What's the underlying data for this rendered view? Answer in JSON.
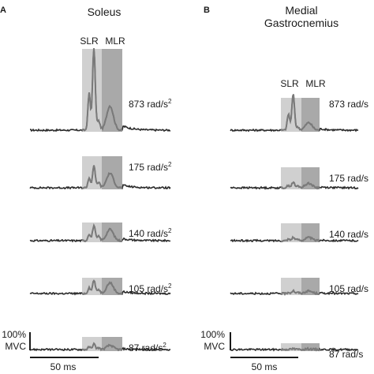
{
  "colors": {
    "slr_window": "#d0d0d0",
    "mlr_window": "#a9a9a9",
    "trace_in_window": "#7a7a7a",
    "trace_baseline": "#2b2b2b"
  },
  "chart_data": [
    {
      "type": "line",
      "panel": "A",
      "title": "Soleus",
      "window_labels": {
        "slr": "SLR",
        "mlr": "MLR"
      },
      "x_units": "ms",
      "y_units": "% MVC",
      "scale_bar": {
        "x_label": "50 ms",
        "y_label": [
          "100%",
          "MVC"
        ]
      },
      "rows": [
        {
          "label": "873 rad/s²",
          "peak_slr": 0.95,
          "peak_mlr": 0.35
        },
        {
          "label": "175 rad/s²",
          "peak_slr": 0.6,
          "peak_mlr": 0.5
        },
        {
          "label": "140 rad/s²",
          "peak_slr": 0.48,
          "peak_mlr": 0.45
        },
        {
          "label": "105 rad/s²",
          "peak_slr": 0.45,
          "peak_mlr": 0.45
        },
        {
          "label": "87 rad/s²",
          "peak_slr": 0.3,
          "peak_mlr": 0.28
        }
      ]
    },
    {
      "type": "line",
      "panel": "B",
      "title": [
        "Medial",
        "Gastrocnemius"
      ],
      "window_labels": {
        "slr": "SLR",
        "mlr": "MLR"
      },
      "x_units": "ms",
      "y_units": "% MVC",
      "scale_bar": {
        "x_label": "50 ms",
        "y_label": [
          "100%",
          "MVC"
        ]
      },
      "rows": [
        {
          "label": "873 rad/s",
          "peak_slr": 0.95,
          "peak_mlr": 0.25
        },
        {
          "label": "175 rad/s",
          "peak_slr": 0.3,
          "peak_mlr": 0.3
        },
        {
          "label": "140 rad/s",
          "peak_slr": 0.22,
          "peak_mlr": 0.25
        },
        {
          "label": "105 rad/s",
          "peak_slr": 0.2,
          "peak_mlr": 0.22
        },
        {
          "label": "87 rad/s",
          "peak_slr": 0.1,
          "peak_mlr": 0.1
        }
      ]
    }
  ]
}
